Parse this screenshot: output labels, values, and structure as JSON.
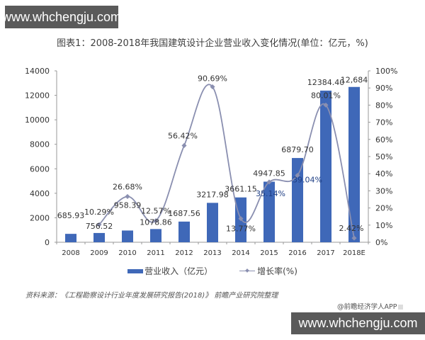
{
  "watermark": {
    "text": "www.whchengju.com"
  },
  "header": {
    "title": "图表1：2008-2018年我国建筑设计企业营业收入变化情况(单位：亿元，%)"
  },
  "legend": {
    "bar_label": "营业收入（亿元）",
    "line_label": "增长率(%)"
  },
  "footer": {
    "source": "资料来源：《工程勘察设计行业年度发展研究报告(2018)》 前瞻产业研究院整理",
    "credit": "@前瞻经济学人APP"
  },
  "colors": {
    "bar": "#3f68b8",
    "line": "#8a8fb0",
    "axis": "#999999",
    "text": "#333333"
  },
  "chart_data": {
    "type": "bar",
    "title": "图表1：2008-2018年我国建筑设计企业营业收入变化情况(单位：亿元，%)",
    "xlabel": "",
    "ylabel": "营业收入（亿元）",
    "y2label": "增长率(%)",
    "categories": [
      "2008",
      "2009",
      "2010",
      "2011",
      "2012",
      "2013",
      "2014",
      "2015",
      "2016",
      "2017",
      "2018E"
    ],
    "series": [
      {
        "name": "营业收入（亿元）",
        "type": "bar",
        "axis": "left",
        "values": [
          685.93,
          756.52,
          958.39,
          1078.86,
          1687.56,
          3217.98,
          3661.15,
          4947.85,
          6879.7,
          12384.4,
          12684
        ],
        "labels": [
          "685.93",
          "756.52",
          "958.39",
          "1078.86",
          "1687.56",
          "3217.98",
          "3661.15",
          "4947.85",
          "6879.70",
          "12384.40",
          "12,684"
        ]
      },
      {
        "name": "增长率(%)",
        "type": "line",
        "axis": "right",
        "values": [
          null,
          10.29,
          26.68,
          12.57,
          56.42,
          90.69,
          13.77,
          35.14,
          39.04,
          80.01,
          2.42
        ],
        "labels": [
          null,
          "10.29%",
          "26.68%",
          "12.57%",
          "56.42%",
          "90.69%",
          "13.77%",
          "35.14%",
          "39.04%",
          "80.01%",
          "2.42%"
        ]
      }
    ],
    "ylim": [
      0,
      14000
    ],
    "yticks": [
      "0",
      "2000",
      "4000",
      "6000",
      "8000",
      "10000",
      "12000",
      "14000"
    ],
    "y2lim": [
      0,
      100
    ],
    "y2ticks": [
      "0%",
      "10%",
      "20%",
      "30%",
      "40%",
      "50%",
      "60%",
      "70%",
      "80%",
      "90%",
      "100%"
    ],
    "grid": false,
    "legend_position": "bottom"
  }
}
